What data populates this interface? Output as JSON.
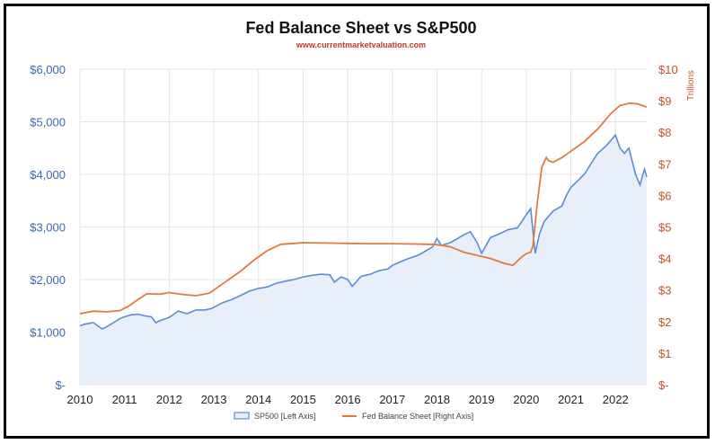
{
  "chart_data": {
    "type": "line",
    "title": "Fed Balance Sheet vs S&P500",
    "subtitle": "www.currentmarketvaluation.com",
    "xlabel": "",
    "left_axis": {
      "label": "",
      "ylim": [
        0,
        6000
      ],
      "ticks": [
        0,
        1000,
        2000,
        3000,
        4000,
        5000,
        6000
      ],
      "tick_labels": [
        "$-",
        "$1,000",
        "$2,000",
        "$3,000",
        "$4,000",
        "$5,000",
        "$6,000"
      ]
    },
    "right_axis": {
      "label": "Trillions",
      "ylim": [
        0,
        10
      ],
      "ticks": [
        0,
        1,
        2,
        3,
        4,
        5,
        6,
        7,
        8,
        9,
        10
      ],
      "tick_labels": [
        "$-",
        "$1",
        "$2",
        "$3",
        "$4",
        "$5",
        "$6",
        "$7",
        "$8",
        "$9",
        "$10"
      ]
    },
    "x_ticks": [
      2010,
      2011,
      2012,
      2013,
      2014,
      2015,
      2016,
      2017,
      2018,
      2019,
      2020,
      2021,
      2022
    ],
    "x_tick_labels": [
      "2010",
      "2011",
      "2012",
      "2013",
      "2014",
      "2015",
      "2016",
      "2017",
      "2018",
      "2019",
      "2020",
      "2021",
      "2022"
    ],
    "xlim": [
      2010,
      2022.7
    ],
    "legend_position": "bottom",
    "series": [
      {
        "name": "SP500 [Left Axis]",
        "axis": "left",
        "style": "area",
        "color": "#5b8ed0",
        "fill": "#e8eefa",
        "x": [
          2010.0,
          2010.1,
          2010.3,
          2010.4,
          2010.5,
          2010.6,
          2010.75,
          2010.9,
          2011.0,
          2011.15,
          2011.3,
          2011.45,
          2011.6,
          2011.7,
          2011.8,
          2011.9,
          2012.0,
          2012.2,
          2012.4,
          2012.6,
          2012.8,
          2012.95,
          2013.2,
          2013.4,
          2013.6,
          2013.8,
          2014.0,
          2014.2,
          2014.4,
          2014.6,
          2014.8,
          2015.0,
          2015.2,
          2015.4,
          2015.6,
          2015.7,
          2015.85,
          2016.0,
          2016.1,
          2016.3,
          2016.5,
          2016.7,
          2016.9,
          2017.0,
          2017.3,
          2017.6,
          2017.9,
          2018.0,
          2018.1,
          2018.3,
          2018.6,
          2018.75,
          2018.9,
          2019.0,
          2019.2,
          2019.4,
          2019.6,
          2019.8,
          2020.0,
          2020.1,
          2020.2,
          2020.3,
          2020.4,
          2020.6,
          2020.8,
          2020.9,
          2021.0,
          2021.3,
          2021.6,
          2021.8,
          2022.0,
          2022.1,
          2022.2,
          2022.3,
          2022.45,
          2022.55,
          2022.65,
          2022.7
        ],
        "values": [
          1120,
          1150,
          1180,
          1120,
          1060,
          1100,
          1180,
          1260,
          1290,
          1330,
          1340,
          1310,
          1290,
          1180,
          1220,
          1250,
          1280,
          1400,
          1350,
          1420,
          1420,
          1450,
          1560,
          1620,
          1700,
          1780,
          1830,
          1860,
          1930,
          1970,
          2000,
          2050,
          2080,
          2100,
          2090,
          1950,
          2050,
          2000,
          1870,
          2060,
          2100,
          2170,
          2200,
          2270,
          2380,
          2470,
          2620,
          2780,
          2650,
          2700,
          2850,
          2910,
          2700,
          2500,
          2800,
          2870,
          2950,
          2980,
          3230,
          3350,
          2500,
          2880,
          3100,
          3300,
          3400,
          3600,
          3750,
          4000,
          4400,
          4550,
          4750,
          4500,
          4400,
          4500,
          4000,
          3800,
          4100,
          3950
        ]
      },
      {
        "name": "Fed Balance Sheet [Right Axis]",
        "axis": "right",
        "style": "line",
        "color": "#e07b3e",
        "x": [
          2010.0,
          2010.3,
          2010.6,
          2010.9,
          2011.1,
          2011.3,
          2011.5,
          2011.8,
          2012.0,
          2012.3,
          2012.6,
          2012.9,
          2013.0,
          2013.3,
          2013.6,
          2013.9,
          2014.2,
          2014.5,
          2014.8,
          2015.0,
          2015.5,
          2016.0,
          2016.5,
          2017.0,
          2017.5,
          2017.8,
          2018.0,
          2018.3,
          2018.6,
          2018.9,
          2019.2,
          2019.5,
          2019.7,
          2019.9,
          2020.0,
          2020.1,
          2020.15,
          2020.25,
          2020.35,
          2020.45,
          2020.5,
          2020.6,
          2020.8,
          2021.0,
          2021.3,
          2021.6,
          2021.9,
          2022.1,
          2022.3,
          2022.5,
          2022.7
        ],
        "values": [
          2.25,
          2.33,
          2.31,
          2.35,
          2.5,
          2.7,
          2.88,
          2.87,
          2.92,
          2.86,
          2.82,
          2.9,
          3.0,
          3.3,
          3.6,
          3.95,
          4.25,
          4.45,
          4.48,
          4.5,
          4.49,
          4.48,
          4.47,
          4.47,
          4.46,
          4.45,
          4.44,
          4.37,
          4.2,
          4.1,
          4.0,
          3.85,
          3.78,
          4.05,
          4.15,
          4.2,
          4.4,
          5.8,
          6.9,
          7.2,
          7.1,
          7.05,
          7.2,
          7.4,
          7.7,
          8.1,
          8.6,
          8.85,
          8.92,
          8.9,
          8.8
        ]
      }
    ]
  }
}
